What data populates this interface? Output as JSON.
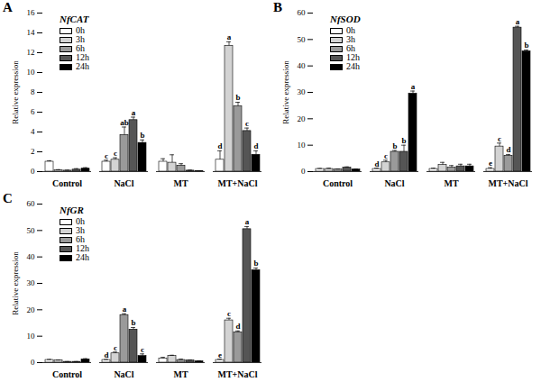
{
  "chart_data": [
    {
      "type": "bar",
      "title": "A",
      "subtitle": "NfCAT",
      "ylabel": "Relative expression",
      "categories": [
        "Control",
        "NaCl",
        "MT",
        "MT+NaCl"
      ],
      "ylim": [
        0,
        16
      ],
      "yticks": [
        0,
        2,
        4,
        6,
        8,
        10,
        12,
        14,
        16
      ],
      "legend": "top-left",
      "series": [
        {
          "name": "0h",
          "color": "#ffffff",
          "values": [
            1.0,
            1.0,
            1.0,
            1.2
          ],
          "errors": [
            0.1,
            0.15,
            0.3,
            0.9
          ],
          "labels": [
            null,
            "c",
            null,
            "d"
          ]
        },
        {
          "name": "3h",
          "color": "#d3d3d3",
          "values": [
            0.15,
            1.2,
            0.9,
            12.7
          ],
          "errors": [
            0.05,
            0.2,
            0.8,
            0.4
          ],
          "labels": [
            null,
            "c",
            null,
            "a"
          ]
        },
        {
          "name": "6h",
          "color": "#9a9a9a",
          "values": [
            0.1,
            3.7,
            0.6,
            6.6
          ],
          "errors": [
            0.05,
            0.8,
            0.2,
            0.4
          ],
          "labels": [
            null,
            "ab",
            null,
            "b"
          ]
        },
        {
          "name": "12h",
          "color": "#555555",
          "values": [
            0.2,
            5.2,
            0.1,
            4.1
          ],
          "errors": [
            0.1,
            0.3,
            0.05,
            0.3
          ],
          "labels": [
            null,
            "a",
            null,
            "c"
          ]
        },
        {
          "name": "24h",
          "color": "#000000",
          "values": [
            0.3,
            2.9,
            0.05,
            1.7
          ],
          "errors": [
            0.1,
            0.3,
            0.02,
            0.4
          ],
          "labels": [
            null,
            "b",
            null,
            "d"
          ]
        }
      ]
    },
    {
      "type": "bar",
      "title": "B",
      "subtitle": "NfSOD",
      "ylabel": "Relative expression",
      "categories": [
        "Control",
        "NaCl",
        "MT",
        "MT+NaCl"
      ],
      "ylim": [
        0,
        60
      ],
      "yticks": [
        0,
        10,
        20,
        30,
        40,
        50,
        60
      ],
      "legend": "top-left",
      "series": [
        {
          "name": "0h",
          "color": "#ffffff",
          "values": [
            1.0,
            1.0,
            1.0,
            1.0
          ],
          "errors": [
            0.2,
            0.3,
            0.3,
            0.5
          ],
          "labels": [
            null,
            "d",
            null,
            "e"
          ]
        },
        {
          "name": "3h",
          "color": "#d3d3d3",
          "values": [
            1.0,
            3.5,
            2.5,
            9.5
          ],
          "errors": [
            0.3,
            0.8,
            1.0,
            1.3
          ],
          "labels": [
            null,
            "c",
            null,
            "c"
          ]
        },
        {
          "name": "6h",
          "color": "#9a9a9a",
          "values": [
            0.8,
            7.5,
            1.5,
            6.0
          ],
          "errors": [
            0.2,
            0.5,
            0.8,
            0.5
          ],
          "labels": [
            null,
            "b",
            null,
            "d"
          ]
        },
        {
          "name": "12h",
          "color": "#555555",
          "values": [
            1.5,
            7.5,
            2.0,
            54.5
          ],
          "errors": [
            0.3,
            2.5,
            0.8,
            0.5
          ],
          "labels": [
            null,
            "b",
            null,
            "a"
          ]
        },
        {
          "name": "24h",
          "color": "#000000",
          "values": [
            0.8,
            29.5,
            2.0,
            45.5
          ],
          "errors": [
            0.2,
            1.0,
            0.8,
            0.5
          ],
          "labels": [
            null,
            "a",
            null,
            "b"
          ]
        }
      ]
    },
    {
      "type": "bar",
      "title": "C",
      "subtitle": "NfGR",
      "ylabel": "Relative expression",
      "categories": [
        "Control",
        "NaCl",
        "MT",
        "MT+NaCl"
      ],
      "ylim": [
        0,
        60
      ],
      "yticks": [
        0,
        10,
        20,
        30,
        40,
        50,
        60
      ],
      "legend": "top-left",
      "series": [
        {
          "name": "0h",
          "color": "#ffffff",
          "values": [
            1.0,
            1.0,
            1.5,
            1.0
          ],
          "errors": [
            0.2,
            0.2,
            0.5,
            0.3
          ],
          "labels": [
            null,
            "d",
            null,
            "e"
          ]
        },
        {
          "name": "3h",
          "color": "#d3d3d3",
          "values": [
            0.8,
            3.5,
            2.5,
            16.0
          ],
          "errors": [
            0.2,
            0.5,
            0.3,
            0.8
          ],
          "labels": [
            null,
            "c",
            null,
            "c"
          ]
        },
        {
          "name": "6h",
          "color": "#9a9a9a",
          "values": [
            0.3,
            18.0,
            1.0,
            11.5
          ],
          "errors": [
            0.1,
            0.5,
            0.3,
            0.5
          ],
          "labels": [
            null,
            "a",
            null,
            "d"
          ]
        },
        {
          "name": "12h",
          "color": "#555555",
          "values": [
            0.3,
            12.5,
            0.8,
            50.5
          ],
          "errors": [
            0.1,
            0.8,
            0.2,
            1.0
          ],
          "labels": [
            null,
            "b",
            null,
            "a"
          ]
        },
        {
          "name": "24h",
          "color": "#000000",
          "values": [
            1.2,
            2.5,
            0.5,
            35.0
          ],
          "errors": [
            0.3,
            0.8,
            0.2,
            0.8
          ],
          "labels": [
            null,
            "c",
            null,
            "b"
          ]
        }
      ]
    }
  ]
}
